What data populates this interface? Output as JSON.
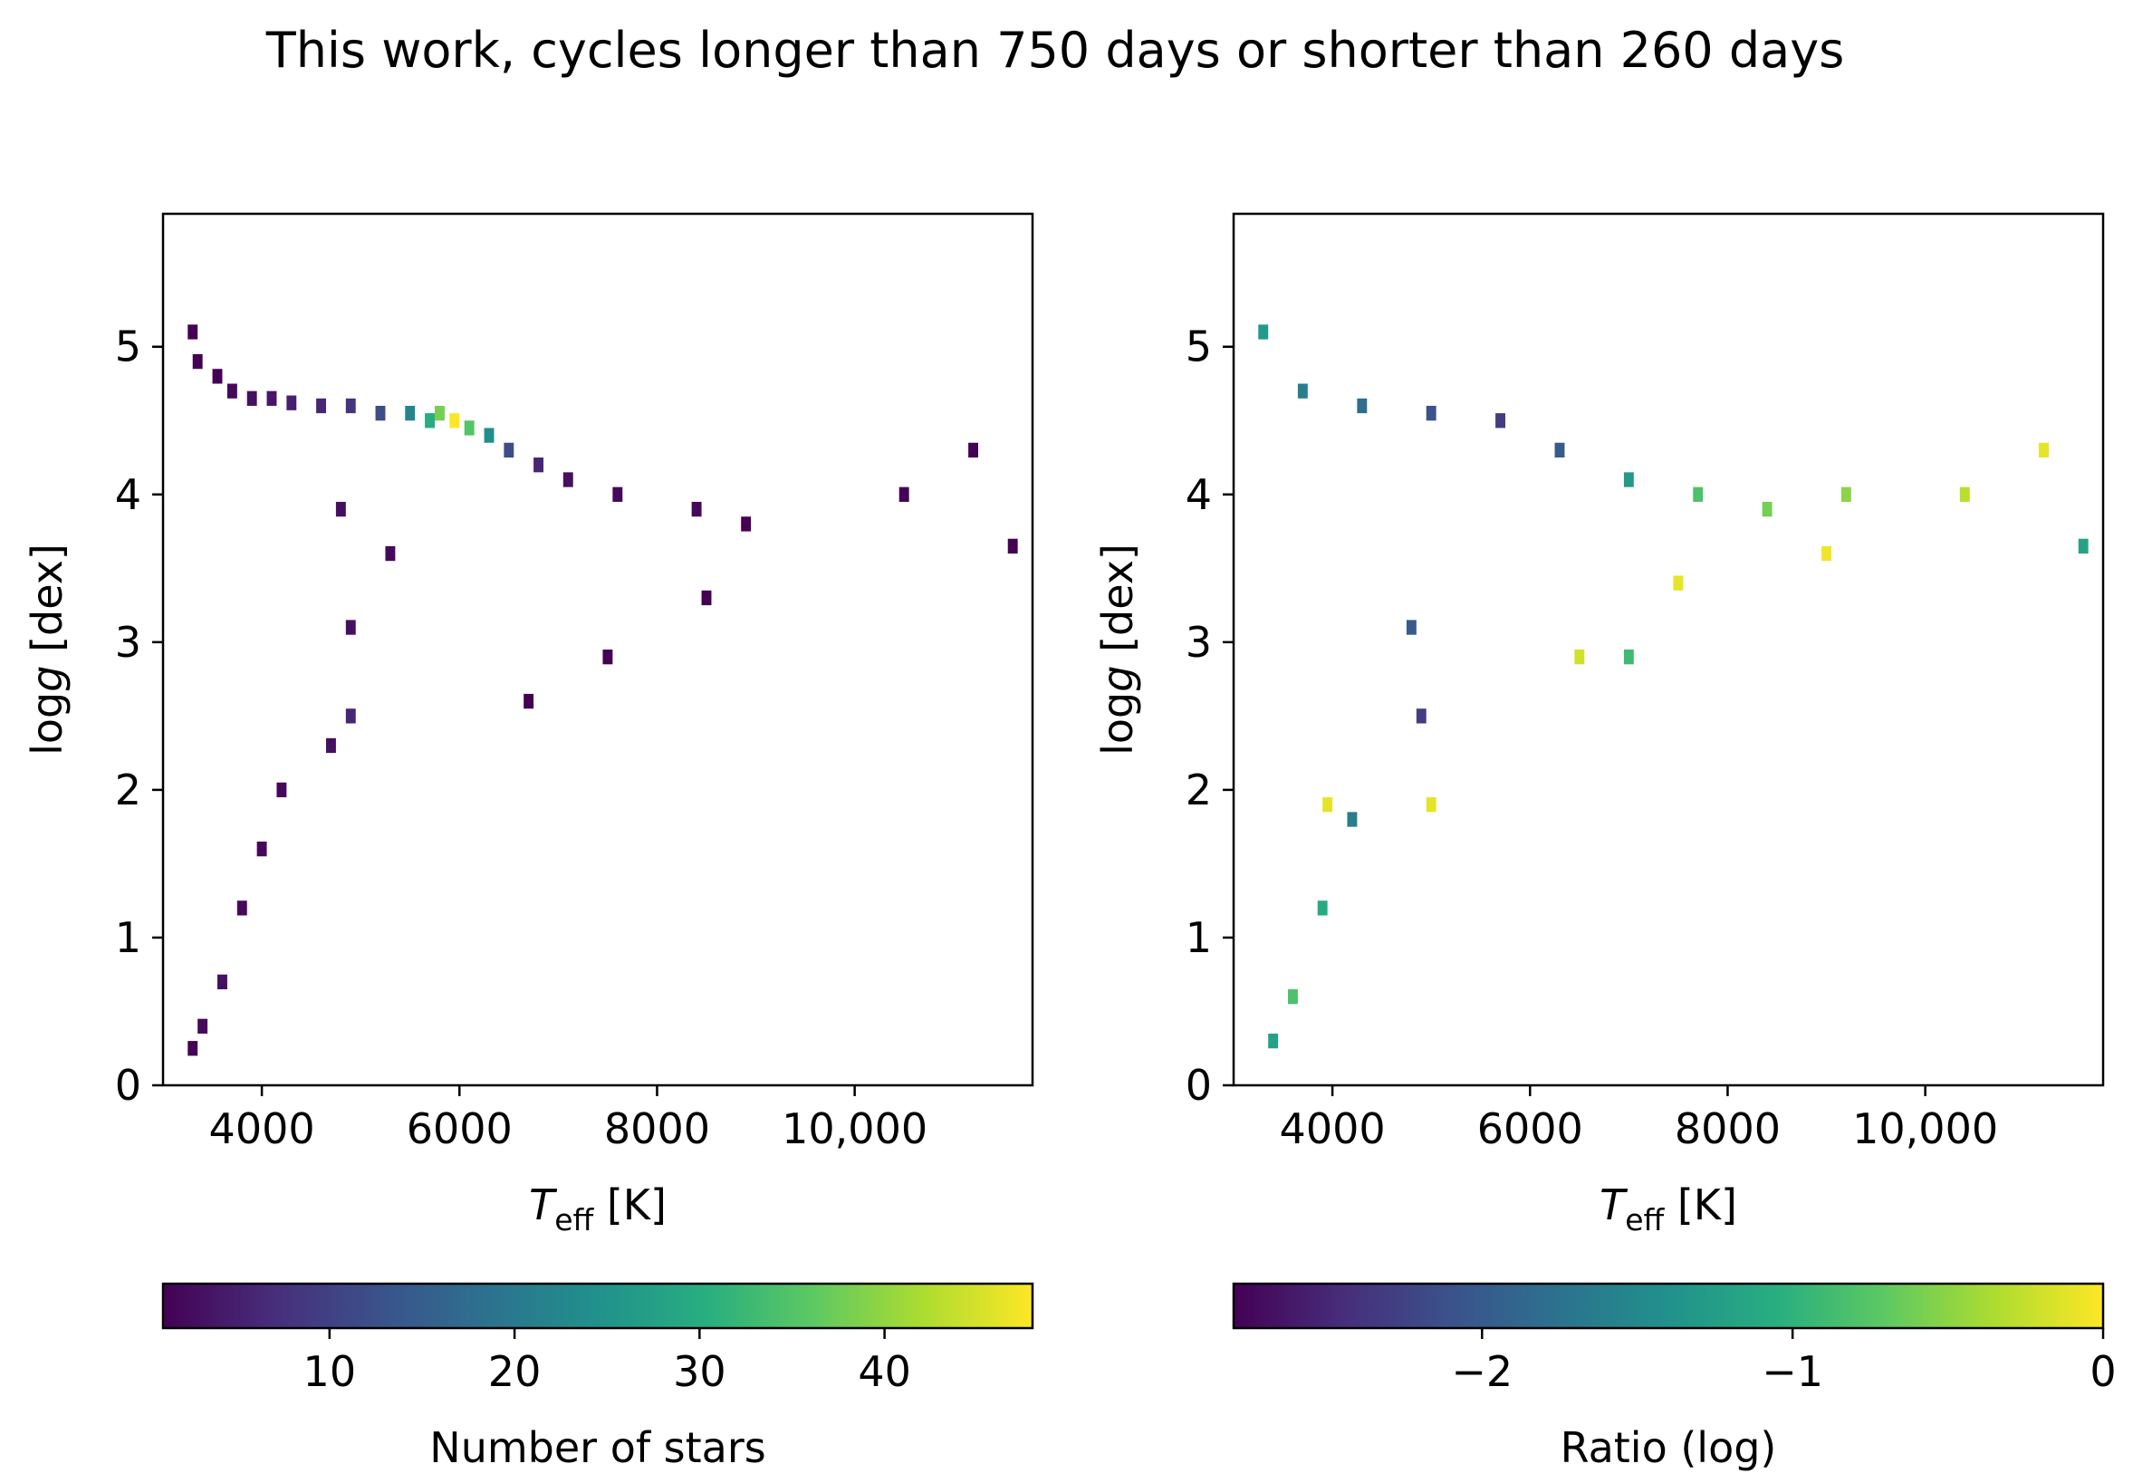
{
  "figure": {
    "title": "This work, cycles longer than 750 days or shorter than 260 days"
  },
  "chart_data": [
    {
      "type": "heatmap",
      "panel": "left",
      "xlabel": {
        "main": "T",
        "sub": "eff",
        "unit": " [K]"
      },
      "ylabel": {
        "prefix": "log",
        "italic": "g",
        "unit": " [dex]"
      },
      "xlim": [
        3000,
        11800
      ],
      "ylim": [
        0,
        5.9
      ],
      "xticks": [
        4000,
        6000,
        8000,
        10000
      ],
      "xtick_labels": [
        "4000",
        "6000",
        "8000",
        "10,000"
      ],
      "yticks": [
        0,
        1,
        2,
        3,
        4,
        5
      ],
      "ytick_labels": [
        "0",
        "1",
        "2",
        "3",
        "4",
        "5"
      ],
      "colorbar": {
        "label": "Number of stars",
        "range": [
          1,
          48
        ],
        "ticks": [
          10,
          20,
          30,
          40
        ],
        "tick_labels": [
          "10",
          "20",
          "30",
          "40"
        ],
        "colormap": "viridis",
        "placement": "bottom"
      },
      "bin_width_teff_K": 100,
      "bin_height_logg_dex": 0.1,
      "bins": [
        {
          "teff": 3300,
          "logg": 5.1,
          "value": 1
        },
        {
          "teff": 3350,
          "logg": 4.9,
          "value": 1
        },
        {
          "teff": 3550,
          "logg": 4.8,
          "value": 1
        },
        {
          "teff": 3700,
          "logg": 4.7,
          "value": 2
        },
        {
          "teff": 3900,
          "logg": 4.65,
          "value": 3
        },
        {
          "teff": 4100,
          "logg": 4.65,
          "value": 4
        },
        {
          "teff": 4300,
          "logg": 4.62,
          "value": 5
        },
        {
          "teff": 4600,
          "logg": 4.6,
          "value": 6
        },
        {
          "teff": 4900,
          "logg": 4.6,
          "value": 8
        },
        {
          "teff": 5200,
          "logg": 4.55,
          "value": 12
        },
        {
          "teff": 5500,
          "logg": 4.55,
          "value": 22
        },
        {
          "teff": 5700,
          "logg": 4.5,
          "value": 30
        },
        {
          "teff": 5800,
          "logg": 4.55,
          "value": 38
        },
        {
          "teff": 5950,
          "logg": 4.5,
          "value": 48
        },
        {
          "teff": 6100,
          "logg": 4.45,
          "value": 35
        },
        {
          "teff": 6300,
          "logg": 4.4,
          "value": 24
        },
        {
          "teff": 6500,
          "logg": 4.3,
          "value": 12
        },
        {
          "teff": 6800,
          "logg": 4.2,
          "value": 6
        },
        {
          "teff": 7100,
          "logg": 4.1,
          "value": 3
        },
        {
          "teff": 7600,
          "logg": 4.0,
          "value": 2
        },
        {
          "teff": 8400,
          "logg": 3.9,
          "value": 2
        },
        {
          "teff": 8900,
          "logg": 3.8,
          "value": 1
        },
        {
          "teff": 10500,
          "logg": 4.0,
          "value": 1
        },
        {
          "teff": 11200,
          "logg": 4.3,
          "value": 1
        },
        {
          "teff": 11600,
          "logg": 3.65,
          "value": 1
        },
        {
          "teff": 4800,
          "logg": 3.9,
          "value": 3
        },
        {
          "teff": 5300,
          "logg": 3.6,
          "value": 2
        },
        {
          "teff": 4900,
          "logg": 3.1,
          "value": 3
        },
        {
          "teff": 4900,
          "logg": 2.5,
          "value": 6
        },
        {
          "teff": 4700,
          "logg": 2.3,
          "value": 3
        },
        {
          "teff": 4200,
          "logg": 2.0,
          "value": 2
        },
        {
          "teff": 4000,
          "logg": 1.6,
          "value": 2
        },
        {
          "teff": 3800,
          "logg": 1.2,
          "value": 2
        },
        {
          "teff": 3600,
          "logg": 0.7,
          "value": 3
        },
        {
          "teff": 3400,
          "logg": 0.4,
          "value": 2
        },
        {
          "teff": 3300,
          "logg": 0.25,
          "value": 1
        },
        {
          "teff": 7500,
          "logg": 2.9,
          "value": 1
        },
        {
          "teff": 6700,
          "logg": 2.6,
          "value": 1
        },
        {
          "teff": 8500,
          "logg": 3.3,
          "value": 1
        }
      ]
    },
    {
      "type": "heatmap",
      "panel": "right",
      "xlabel": {
        "main": "T",
        "sub": "eff",
        "unit": " [K]"
      },
      "ylabel": {
        "prefix": "log",
        "italic": "g",
        "unit": " [dex]"
      },
      "xlim": [
        3000,
        11800
      ],
      "ylim": [
        0,
        5.9
      ],
      "xticks": [
        4000,
        6000,
        8000,
        10000
      ],
      "xtick_labels": [
        "4000",
        "6000",
        "8000",
        "10,000"
      ],
      "yticks": [
        0,
        1,
        2,
        3,
        4,
        5
      ],
      "ytick_labels": [
        "0",
        "1",
        "2",
        "3",
        "4",
        "5"
      ],
      "colorbar": {
        "label": "Ratio (log)",
        "range": [
          -2.8,
          0
        ],
        "ticks": [
          -2,
          -1,
          0
        ],
        "tick_labels": [
          "−2",
          "−1",
          "0"
        ],
        "colormap": "viridis",
        "placement": "bottom"
      },
      "bin_width_teff_K": 100,
      "bin_height_logg_dex": 0.1,
      "bins": [
        {
          "teff": 3300,
          "logg": 5.1,
          "value": -1.3
        },
        {
          "teff": 3700,
          "logg": 4.7,
          "value": -1.6
        },
        {
          "teff": 4300,
          "logg": 4.6,
          "value": -1.8
        },
        {
          "teff": 5000,
          "logg": 4.55,
          "value": -2.1
        },
        {
          "teff": 5700,
          "logg": 4.5,
          "value": -2.3
        },
        {
          "teff": 6300,
          "logg": 4.3,
          "value": -2.0
        },
        {
          "teff": 7000,
          "logg": 4.1,
          "value": -1.3
        },
        {
          "teff": 7700,
          "logg": 4.0,
          "value": -0.8
        },
        {
          "teff": 8400,
          "logg": 3.9,
          "value": -0.6
        },
        {
          "teff": 9200,
          "logg": 4.0,
          "value": -0.5
        },
        {
          "teff": 10400,
          "logg": 4.0,
          "value": -0.3
        },
        {
          "teff": 11200,
          "logg": 4.3,
          "value": -0.1
        },
        {
          "teff": 11600,
          "logg": 3.65,
          "value": -1.2
        },
        {
          "teff": 7500,
          "logg": 3.4,
          "value": -0.1
        },
        {
          "teff": 9000,
          "logg": 3.6,
          "value": -0.05
        },
        {
          "teff": 6500,
          "logg": 2.9,
          "value": -0.2
        },
        {
          "teff": 7000,
          "logg": 2.9,
          "value": -0.9
        },
        {
          "teff": 4800,
          "logg": 3.1,
          "value": -2.0
        },
        {
          "teff": 4900,
          "logg": 2.5,
          "value": -2.3
        },
        {
          "teff": 4200,
          "logg": 1.8,
          "value": -1.6
        },
        {
          "teff": 3900,
          "logg": 1.2,
          "value": -1.1
        },
        {
          "teff": 3600,
          "logg": 0.6,
          "value": -0.8
        },
        {
          "teff": 3400,
          "logg": 0.3,
          "value": -1.2
        },
        {
          "teff": 5000,
          "logg": 1.9,
          "value": -0.1
        },
        {
          "teff": 3950,
          "logg": 1.9,
          "value": -0.1
        }
      ]
    }
  ]
}
